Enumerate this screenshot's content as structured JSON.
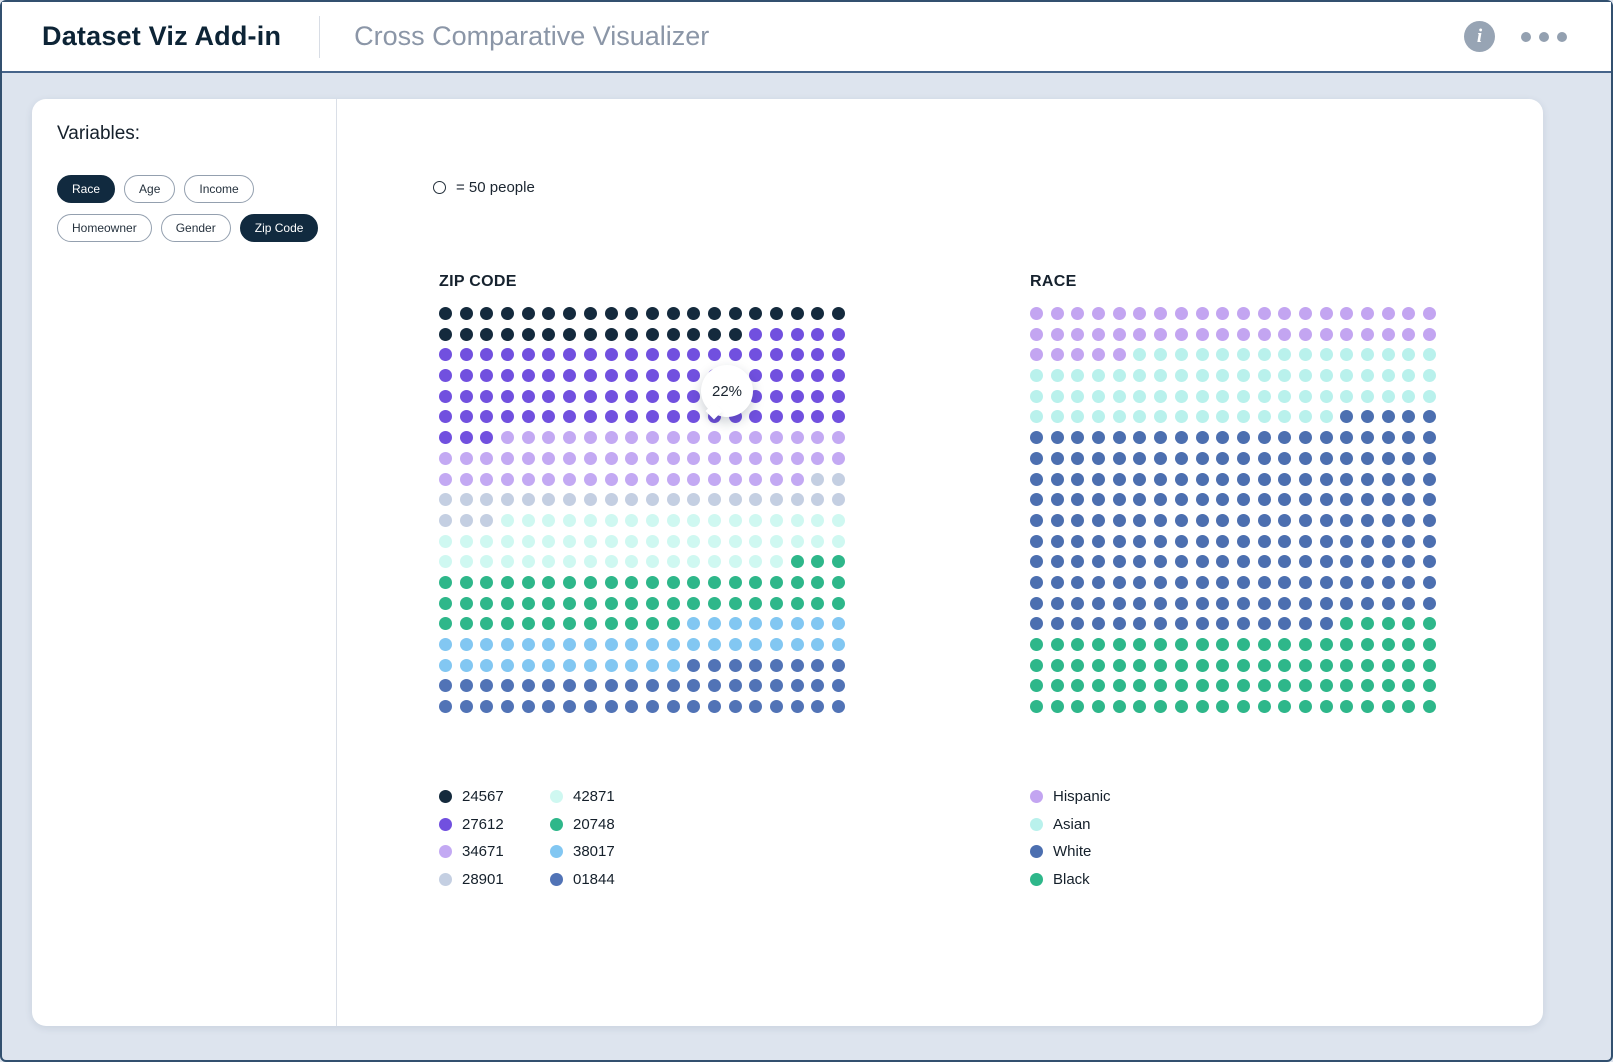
{
  "header": {
    "app_title": "Dataset Viz Add-in",
    "page_title": "Cross Comparative Visualizer"
  },
  "sidebar": {
    "heading": "Variables:",
    "chips": [
      {
        "label": "Race",
        "selected": true
      },
      {
        "label": "Age",
        "selected": false
      },
      {
        "label": "Income",
        "selected": false
      },
      {
        "label": "Homeowner",
        "selected": false
      },
      {
        "label": "Gender",
        "selected": false
      },
      {
        "label": "Zip Code",
        "selected": true
      }
    ],
    "chip_rows": [
      3,
      3
    ]
  },
  "key": {
    "label": "= 50 people"
  },
  "tooltip": {
    "value": "22%"
  },
  "chart_data": [
    {
      "type": "dot-matrix",
      "title": "ZIP CODE",
      "unit_per_dot": 50,
      "unit_label": "people",
      "grid": {
        "columns": 20,
        "rows": 20
      },
      "segments": [
        {
          "label": "24567",
          "color": "#142A3D",
          "dots": 35
        },
        {
          "label": "27612",
          "color": "#7150DF",
          "dots": 88
        },
        {
          "label": "34671",
          "color": "#C3A9F3",
          "dots": 55
        },
        {
          "label": "28901",
          "color": "#C4CFE2",
          "dots": 25
        },
        {
          "label": "42871",
          "color": "#CFF8F1",
          "dots": 54
        },
        {
          "label": "20748",
          "color": "#2EB78A",
          "dots": 55
        },
        {
          "label": "38017",
          "color": "#82C7F2",
          "dots": 40
        },
        {
          "label": "01844",
          "color": "#5173B6",
          "dots": 48
        }
      ],
      "highlighted_segment": "27612",
      "highlighted_percent": "22%"
    },
    {
      "type": "dot-matrix",
      "title": "RACE",
      "unit_per_dot": 50,
      "unit_label": "people",
      "grid": {
        "columns": 20,
        "rows": 20
      },
      "segments": [
        {
          "label": "Hispanic",
          "color": "#C3A5F1",
          "dots": 45
        },
        {
          "label": "Asian",
          "color": "#B9F1EC",
          "dots": 70
        },
        {
          "label": "White",
          "color": "#4C6FB0",
          "dots": 200
        },
        {
          "label": "Black",
          "color": "#2EB78A",
          "dots": 85
        }
      ]
    }
  ]
}
